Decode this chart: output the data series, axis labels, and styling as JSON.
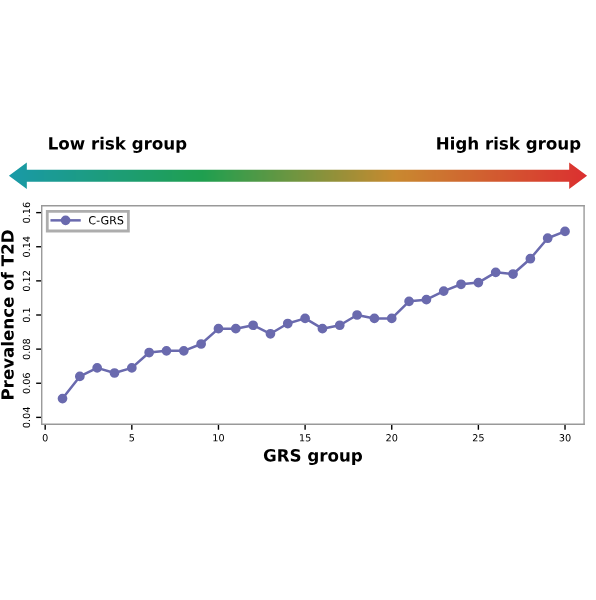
{
  "chart_data": {
    "type": "line",
    "xlabel": "GRS group",
    "ylabel": "Prevalence of T2D",
    "annotations": [
      "Low risk group",
      "High risk group"
    ],
    "x": [
      1,
      2,
      3,
      4,
      5,
      6,
      7,
      8,
      9,
      10,
      11,
      12,
      13,
      14,
      15,
      16,
      17,
      18,
      19,
      20,
      21,
      22,
      23,
      24,
      25,
      26,
      27,
      28,
      29,
      30
    ],
    "series": [
      {
        "name": "C-GRS",
        "color": "#6a6aae",
        "values": [
          0.051,
          0.064,
          0.069,
          0.066,
          0.069,
          0.078,
          0.079,
          0.079,
          0.083,
          0.092,
          0.092,
          0.094,
          0.089,
          0.095,
          0.098,
          0.092,
          0.094,
          0.1,
          0.098,
          0.098,
          0.108,
          0.109,
          0.114,
          0.118,
          0.119,
          0.125,
          0.124,
          0.133,
          0.145,
          0.149
        ]
      }
    ],
    "xlim": [
      -0.2,
      31.1
    ],
    "xticks": [
      0,
      5,
      10,
      15,
      20,
      25,
      30
    ],
    "ylim": [
      0.036,
      0.164
    ],
    "yticks": [
      0.04,
      0.06,
      0.08,
      0.1,
      0.12,
      0.14,
      0.16
    ],
    "marker": "circle",
    "legend": "top left",
    "grid": false
  }
}
